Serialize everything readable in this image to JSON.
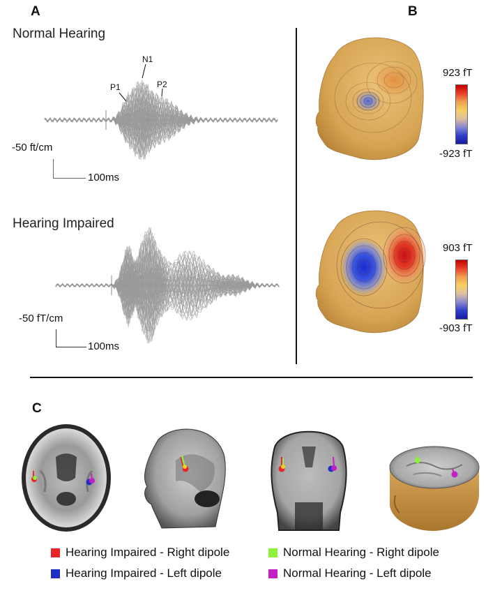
{
  "panels": {
    "a": {
      "letter": "A",
      "normal_title": "Normal Hearing",
      "impaired_title": "Hearing Impaired",
      "normal_scale_amp": "-50 ft/cm",
      "normal_scale_time": "100ms",
      "impaired_scale_amp": "-50 fT/cm",
      "impaired_scale_time": "100ms",
      "peaks": {
        "p1": "P1",
        "n1": "N1",
        "p2": "P2"
      }
    },
    "b": {
      "letter": "B",
      "top_max": "923 fT",
      "top_min": "-923 fT",
      "bottom_max": "903 fT",
      "bottom_min": "-903 fT"
    },
    "c": {
      "letter": "C"
    }
  },
  "legend": [
    {
      "label": "Hearing Impaired - Right dipole",
      "color": "#e8262a"
    },
    {
      "label": "Hearing Impaired - Left dipole",
      "color": "#1f2fc4"
    },
    {
      "label": "Normal Hearing - Right dipole",
      "color": "#8cf23a"
    },
    {
      "label": "Normal Hearing - Left dipole",
      "color": "#c21fc4"
    }
  ],
  "colors": {
    "trace": "#9a9a9a",
    "head_skin": "#d8a95a",
    "positive": "#e0342a",
    "negative": "#2a3dd0"
  }
}
